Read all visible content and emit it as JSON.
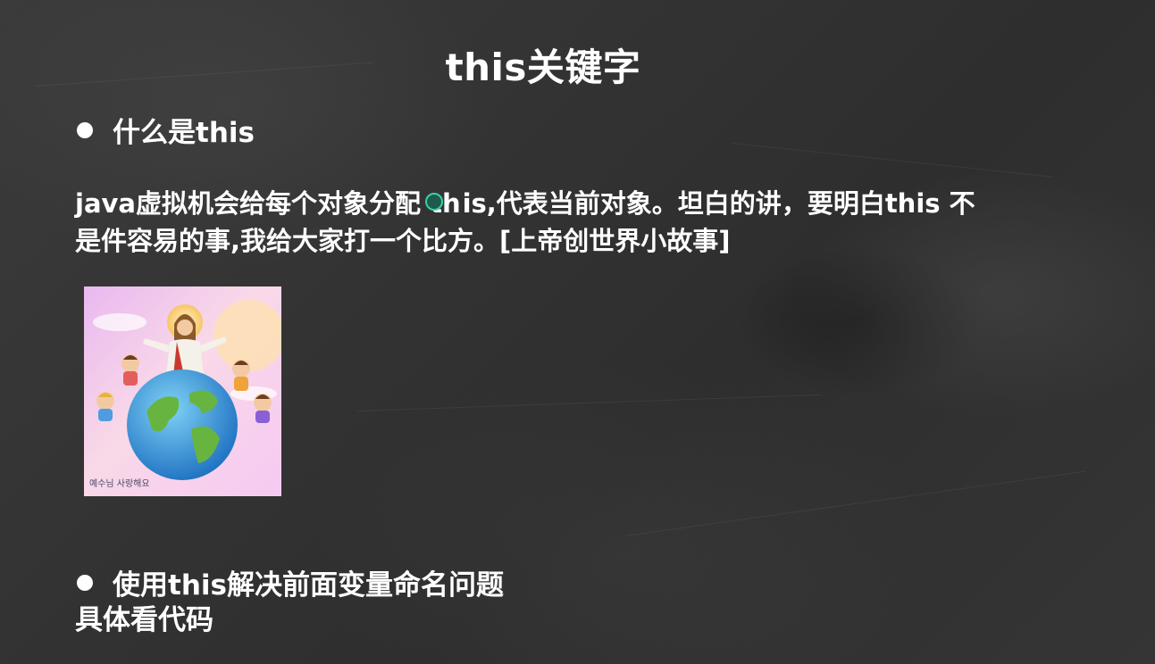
{
  "slide": {
    "title": "this关键字",
    "bullet1": "什么是this",
    "paragraph_line1": "java虚拟机会给每个对象分配 th",
    "paragraph_line1b": "is,代表当前对象。坦白的讲，要明白this 不",
    "paragraph_line2": "是件容易的事,我给大家打一个比方。[上帝创世界小故事]",
    "image_caption": "예수님 사랑해요",
    "bullet2": "使用this解决前面变量命名问题",
    "footer": "具体看代码"
  },
  "colors": {
    "text": "#ffffff",
    "board": "#333333",
    "cursor_ring": "#39d0a8"
  },
  "icons": {
    "bullet": "bullet-dot-icon",
    "cursor": "cursor-icon"
  }
}
